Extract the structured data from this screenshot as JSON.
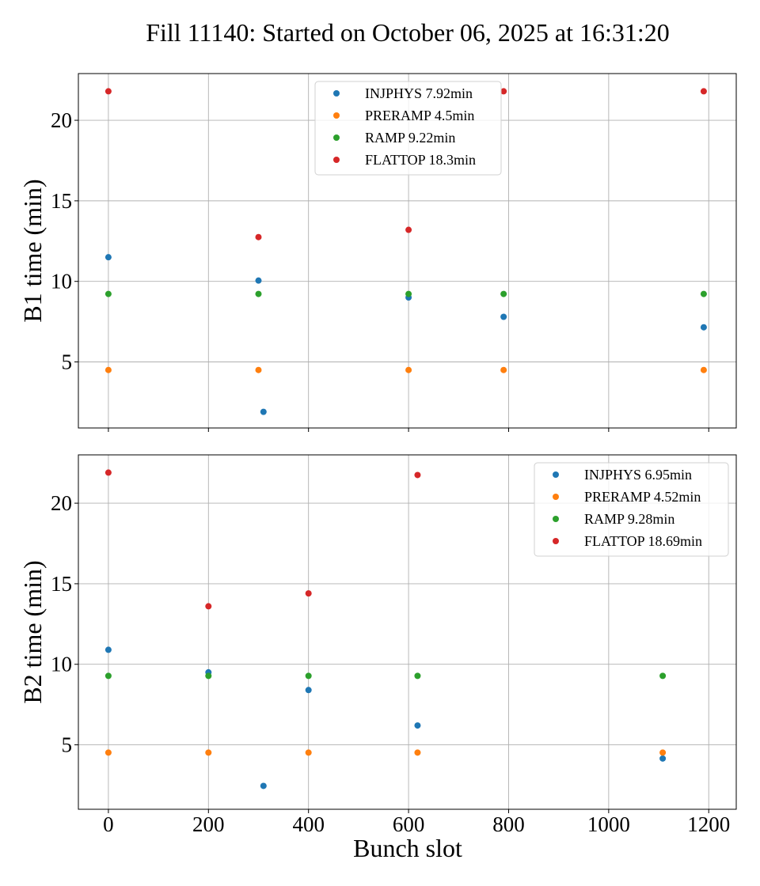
{
  "chart_data": {
    "title": "Fill 11140: Started on October 06, 2025 at 16:31:20",
    "type": "scatter",
    "shared_x": true,
    "xlabel": "Bunch slot",
    "xlim": [
      -60,
      1255
    ],
    "xticks": [
      0,
      200,
      400,
      600,
      800,
      1000,
      1200
    ],
    "colors": {
      "INJPHYS": "#1f77b4",
      "PRERAMP": "#ff7f0e",
      "RAMP": "#2ca02c",
      "FLATTOP": "#d62728"
    },
    "panels": [
      {
        "ylabel": "B1 time (min)",
        "ylim": [
          0.9,
          22.9
        ],
        "yticks": [
          5,
          10,
          15,
          20
        ],
        "grid": true,
        "legend_position": "upper-center",
        "series": [
          {
            "name": "INJPHYS",
            "legend": "INJPHYS 7.92min",
            "x": [
              0,
              300,
              310,
              600,
              790,
              1190
            ],
            "y": [
              11.5,
              10.05,
              1.9,
              9.0,
              7.8,
              7.15
            ]
          },
          {
            "name": "PRERAMP",
            "legend": "PRERAMP 4.5min",
            "x": [
              0,
              300,
              600,
              790,
              1190
            ],
            "y": [
              4.5,
              4.5,
              4.5,
              4.5,
              4.5
            ]
          },
          {
            "name": "RAMP",
            "legend": "RAMP 9.22min",
            "x": [
              0,
              300,
              600,
              790,
              1190
            ],
            "y": [
              9.22,
              9.22,
              9.22,
              9.22,
              9.22
            ]
          },
          {
            "name": "FLATTOP",
            "legend": "FLATTOP 18.3min",
            "x": [
              0,
              300,
              600,
              790,
              1190
            ],
            "y": [
              21.8,
              12.75,
              13.2,
              21.8,
              21.8
            ]
          }
        ]
      },
      {
        "ylabel": "B2 time (min)",
        "ylim": [
          1.0,
          23.0
        ],
        "yticks": [
          5,
          10,
          15,
          20
        ],
        "grid": true,
        "legend_position": "upper-right",
        "series": [
          {
            "name": "INJPHYS",
            "legend": "INJPHYS 6.95min",
            "x": [
              0,
              200,
              310,
              400,
              618,
              1108
            ],
            "y": [
              10.9,
              9.5,
              2.45,
              8.4,
              6.2,
              4.15
            ]
          },
          {
            "name": "PRERAMP",
            "legend": "PRERAMP 4.52min",
            "x": [
              0,
              200,
              400,
              618,
              1108
            ],
            "y": [
              4.52,
              4.52,
              4.52,
              4.52,
              4.52
            ]
          },
          {
            "name": "RAMP",
            "legend": "RAMP 9.28min",
            "x": [
              0,
              200,
              400,
              618,
              1108
            ],
            "y": [
              9.28,
              9.28,
              9.28,
              9.28,
              9.28
            ]
          },
          {
            "name": "FLATTOP",
            "legend": "FLATTOP 18.69min",
            "x": [
              0,
              200,
              400,
              618
            ],
            "y": [
              21.9,
              13.6,
              14.4,
              21.75
            ]
          }
        ]
      }
    ]
  }
}
